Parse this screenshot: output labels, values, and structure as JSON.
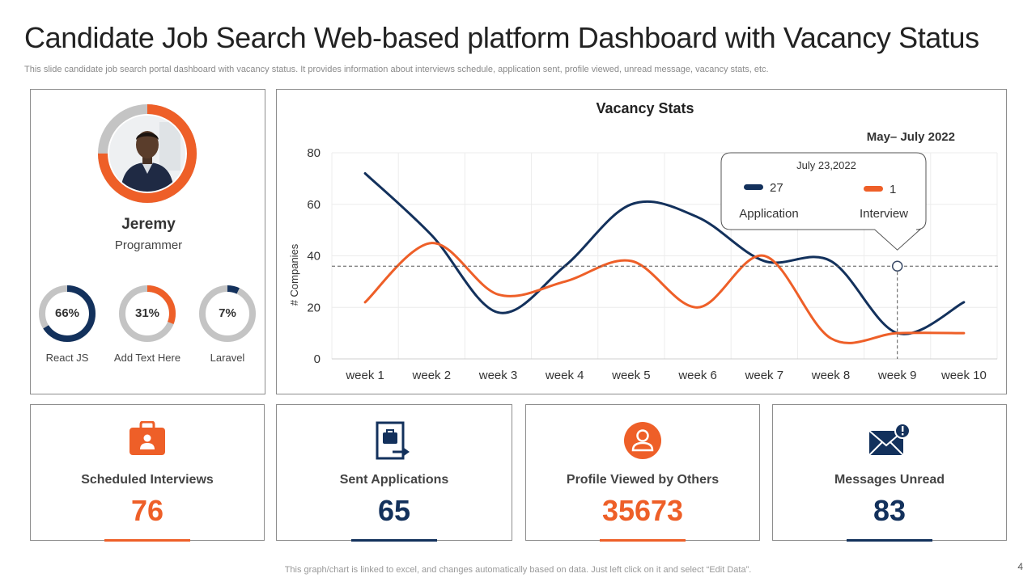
{
  "header": {
    "title": "Candidate Job Search Web-based platform Dashboard with Vacancy Status",
    "subtitle": "This slide candidate job search portal dashboard with vacancy status. It provides information about interviews schedule, application sent, profile viewed, unread message, vacancy stats, etc."
  },
  "profile": {
    "name": "Jeremy",
    "role": "Programmer",
    "skills": [
      {
        "pct_label": "66%",
        "value": 66,
        "label": "React JS",
        "color": "#13315c"
      },
      {
        "pct_label": "31%",
        "value": 31,
        "label": "Add Text Here",
        "color": "#ee5f28"
      },
      {
        "pct_label": "7%",
        "value": 7,
        "label": "Laravel",
        "color": "#13315c"
      }
    ]
  },
  "chart_data": {
    "type": "line",
    "title": "Vacancy Stats",
    "period": "May– July 2022",
    "ylabel": "# Companies",
    "xlabel": "",
    "ylim": [
      0,
      80
    ],
    "yticks": [
      "0",
      "20",
      "40",
      "60",
      "80"
    ],
    "categories": [
      "week 1",
      "week 2",
      "week 3",
      "week 4",
      "week 5",
      "week 6",
      "week 7",
      "week 8",
      "week 9",
      "week 10"
    ],
    "series": [
      {
        "name": "Application",
        "color": "#13315c",
        "values": [
          72,
          48,
          18,
          36,
          60,
          55,
          38,
          38,
          10,
          22
        ]
      },
      {
        "name": "Interview",
        "color": "#ee5f28",
        "values": [
          22,
          45,
          25,
          30,
          38,
          20,
          40,
          8,
          10,
          10
        ]
      }
    ],
    "tooltip": {
      "date": "July 23,2022",
      "application_value": "27",
      "application_label": "Application",
      "interview_value": "1",
      "interview_label": "Interview",
      "x_week": 8.5,
      "y_value": 36
    }
  },
  "stats": [
    {
      "label": "Scheduled Interviews",
      "value": "76",
      "color": "#ee5f28",
      "icon": "briefcase-icon"
    },
    {
      "label": "Sent Applications",
      "value": "65",
      "color": "#13315c",
      "icon": "send-application-icon"
    },
    {
      "label": "Profile Viewed by Others",
      "value": "35673",
      "color": "#ee5f28",
      "icon": "user-icon"
    },
    {
      "label": "Messages Unread",
      "value": "83",
      "color": "#13315c",
      "icon": "envelope-alert-icon"
    }
  ],
  "footer": {
    "note": "This graph/chart is linked to excel,  and changes automatically based on data. Just left click on it and select “Edit Data”.",
    "page_number": "4"
  }
}
